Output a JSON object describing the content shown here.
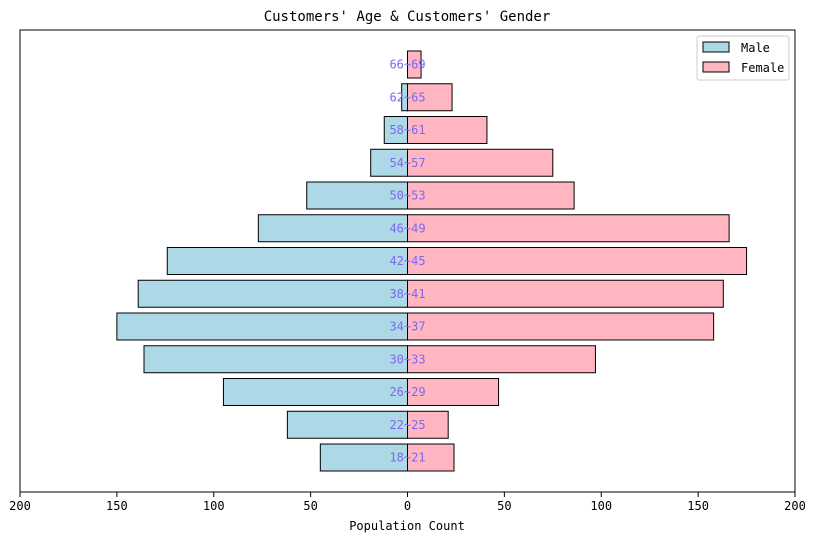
{
  "chart_data": {
    "type": "bar",
    "orientation": "horizontal",
    "layout": "population-pyramid",
    "title": "Customers' Age & Customers' Gender",
    "xlabel": "Population Count",
    "ylabel": "",
    "xlim": [
      -200,
      200
    ],
    "x_ticks": [
      -200,
      -150,
      -100,
      -50,
      0,
      50,
      100,
      150,
      200
    ],
    "x_tick_labels": [
      "200",
      "150",
      "100",
      "50",
      "0",
      "50",
      "100",
      "150",
      "200"
    ],
    "grid": false,
    "legend_position": "top-right",
    "categories": [
      "18-21",
      "22-25",
      "26-29",
      "30-33",
      "34-37",
      "38-41",
      "42-45",
      "46-49",
      "50-53",
      "54-57",
      "58-61",
      "62-65",
      "66-69"
    ],
    "series": [
      {
        "name": "Male",
        "color": "#add8e6",
        "direction": "left",
        "values": [
          45,
          62,
          95,
          136,
          150,
          139,
          124,
          77,
          52,
          19,
          12,
          3,
          0
        ]
      },
      {
        "name": "Female",
        "color": "#ffb6c1",
        "direction": "right",
        "values": [
          24,
          21,
          47,
          97,
          158,
          163,
          175,
          166,
          86,
          75,
          41,
          23,
          7
        ]
      }
    ],
    "category_label_color": "#7b68ee"
  }
}
